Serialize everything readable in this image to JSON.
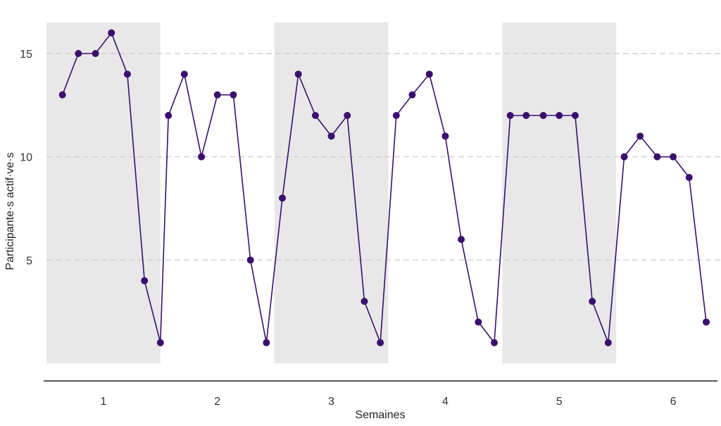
{
  "chart_data": {
    "type": "line",
    "title": "",
    "xlabel": "Semaines",
    "ylabel": "Participante·s actif·ve·s",
    "week_tick_labels": [
      "1",
      "2",
      "3",
      "4",
      "5",
      "6"
    ],
    "y_ticks": [
      5,
      10,
      15
    ],
    "y_tick_labels": [
      "5",
      "10",
      "15"
    ],
    "ylim": [
      0,
      16.5
    ],
    "xlim": [
      0.5,
      6.5
    ],
    "grid": "horizontal dashed",
    "shaded_weeks": [
      1,
      3,
      5
    ],
    "colors": {
      "line": "#3b0f6f",
      "shade": "#e8e8e8",
      "grid": "#c8c8c8",
      "axis": "#222222"
    },
    "series": [
      {
        "x": [
          0.64,
          0.78,
          0.93,
          1.07,
          1.21,
          1.36,
          1.5,
          1.57,
          1.71,
          1.86,
          2.0,
          2.14,
          2.29,
          2.43,
          2.57,
          2.71,
          2.86,
          3.0,
          3.14,
          3.29,
          3.43,
          3.57,
          3.71,
          3.86,
          4.0,
          4.14,
          4.29,
          4.43,
          4.57,
          4.71,
          4.86,
          5.0,
          5.14,
          5.29,
          5.43,
          5.57,
          5.71,
          5.86,
          6.0,
          6.14,
          6.29
        ],
        "values": [
          13,
          15,
          15,
          16,
          14,
          4,
          1,
          12,
          14,
          10,
          13,
          13,
          5,
          1,
          8,
          14,
          12,
          11,
          12,
          3,
          1,
          12,
          13,
          14,
          11,
          6,
          2,
          1,
          12,
          12,
          12,
          12,
          12,
          3,
          1,
          10,
          11,
          10,
          10,
          9,
          2
        ]
      }
    ]
  }
}
